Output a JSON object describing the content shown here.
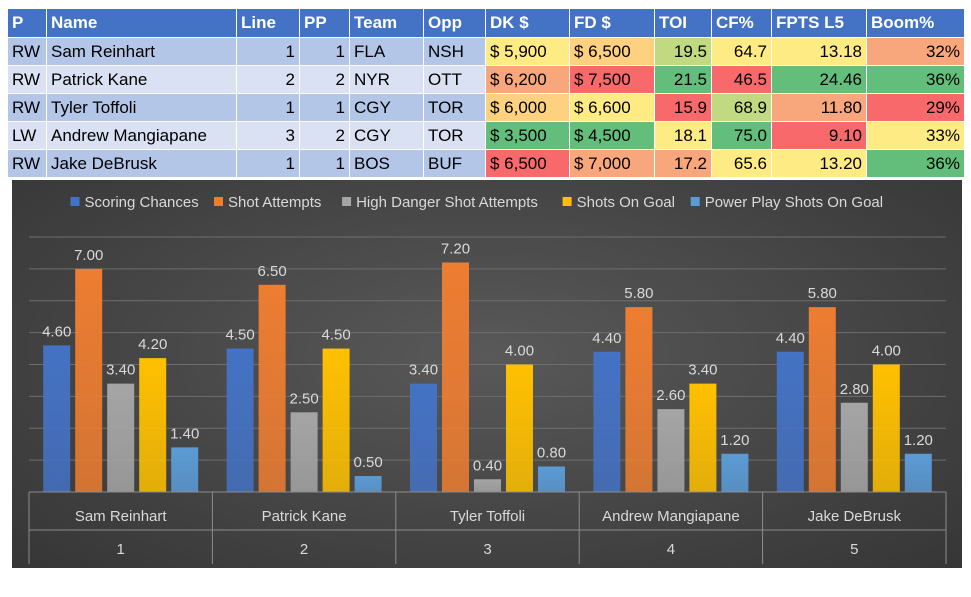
{
  "table": {
    "headers": [
      "P",
      "Name",
      "Line",
      "PP",
      "Team",
      "Opp",
      "DK $",
      "FD $",
      "TOI",
      "CF%",
      "FPTS L5",
      "Boom%"
    ],
    "rows": [
      {
        "pos": "RW",
        "name": "Sam Reinhart",
        "line": "1",
        "pp": "1",
        "team": "FLA",
        "opp": "NSH",
        "dk": "$ 5,900",
        "fd": "$ 6,500",
        "toi": "19.5",
        "cf": "64.7",
        "fpts": "13.18",
        "boom": "32%"
      },
      {
        "pos": "RW",
        "name": "Patrick Kane",
        "line": "2",
        "pp": "2",
        "team": "NYR",
        "opp": "OTT",
        "dk": "$ 6,200",
        "fd": "$ 7,500",
        "toi": "21.5",
        "cf": "46.5",
        "fpts": "24.46",
        "boom": "36%"
      },
      {
        "pos": "RW",
        "name": "Tyler Toffoli",
        "line": "1",
        "pp": "1",
        "team": "CGY",
        "opp": "TOR",
        "dk": "$ 6,000",
        "fd": "$ 6,600",
        "toi": "15.9",
        "cf": "68.9",
        "fpts": "11.80",
        "boom": "29%"
      },
      {
        "pos": "LW",
        "name": "Andrew Mangiapane",
        "line": "3",
        "pp": "2",
        "team": "CGY",
        "opp": "TOR",
        "dk": "$ 3,500",
        "fd": "$ 4,500",
        "toi": "18.1",
        "cf": "75.0",
        "fpts": "9.10",
        "boom": "33%"
      },
      {
        "pos": "RW",
        "name": "Jake DeBrusk",
        "line": "1",
        "pp": "1",
        "team": "BOS",
        "opp": "BUF",
        "dk": "$ 6,500",
        "fd": "$ 7,000",
        "toi": "17.2",
        "cf": "65.6",
        "fpts": "13.20",
        "boom": "36%"
      }
    ],
    "cell_colors": {
      "dk": [
        "#ffeb84",
        "#f8a77c",
        "#fdd17f",
        "#63be7b",
        "#f8696b"
      ],
      "fd": [
        "#fdd17f",
        "#f8696b",
        "#ffeb84",
        "#63be7b",
        "#f8a77c"
      ],
      "toi": [
        "#c1d980",
        "#63be7b",
        "#f8696b",
        "#ffeb84",
        "#f8a77c"
      ],
      "cf": [
        "#ffeb84",
        "#f8696b",
        "#c1d980",
        "#63be7b",
        "#ffeb84"
      ],
      "fpts": [
        "#ffeb84",
        "#63be7b",
        "#f8a77c",
        "#f8696b",
        "#ffeb84"
      ],
      "boom": [
        "#f8a77c",
        "#63be7b",
        "#f8696b",
        "#ffeb84",
        "#63be7b"
      ]
    }
  },
  "chart_data": {
    "type": "bar",
    "categories": [
      "Sam Reinhart",
      "Patrick Kane",
      "Tyler Toffoli",
      "Andrew Mangiapane",
      "Jake DeBrusk"
    ],
    "category_numbers": [
      "1",
      "2",
      "3",
      "4",
      "5"
    ],
    "series": [
      {
        "name": "Scoring Chances",
        "color": "#4472c4",
        "values": [
          4.6,
          4.5,
          3.4,
          4.4,
          4.4
        ]
      },
      {
        "name": "Shot Attempts",
        "color": "#ed7d31",
        "values": [
          7.0,
          6.5,
          7.2,
          5.8,
          5.8
        ]
      },
      {
        "name": "High Danger Shot Attempts",
        "color": "#a5a5a5",
        "values": [
          3.4,
          2.5,
          0.4,
          2.6,
          2.8
        ]
      },
      {
        "name": "Shots On Goal",
        "color": "#ffc000",
        "values": [
          4.2,
          4.5,
          4.0,
          3.4,
          4.0
        ]
      },
      {
        "name": "Power Play Shots On Goal",
        "color": "#5b9bd5",
        "values": [
          1.4,
          0.5,
          0.8,
          1.2,
          1.2
        ]
      }
    ],
    "ylim": [
      0,
      8
    ],
    "gridlines": true,
    "legend_position": "top",
    "value_format": "0.00"
  }
}
